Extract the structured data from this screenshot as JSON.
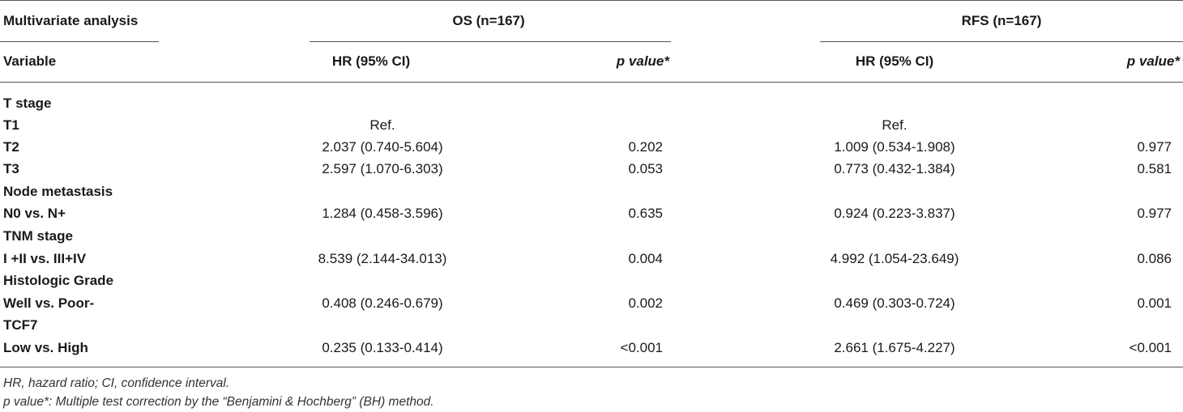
{
  "header": {
    "group_label": "Multivariate analysis",
    "os_label": "OS (n=167)",
    "rfs_label": "RFS (n=167)",
    "variable_label": "Variable",
    "os_hr_label": "HR (95% CI)",
    "os_p_label": "p value*",
    "rfs_hr_label": "HR (95% CI)",
    "rfs_p_label": "p value*"
  },
  "rows": [
    {
      "variable": "T stage",
      "os_hr": "",
      "os_p": "",
      "rfs_hr": "",
      "rfs_p": ""
    },
    {
      "variable": "T1",
      "os_hr": "Ref.",
      "os_p": "",
      "rfs_hr": "Ref.",
      "rfs_p": ""
    },
    {
      "variable": "T2",
      "os_hr": "2.037 (0.740-5.604)",
      "os_p": "0.202",
      "rfs_hr": "1.009 (0.534-1.908)",
      "rfs_p": "0.977"
    },
    {
      "variable": "T3",
      "os_hr": "2.597 (1.070-6.303)",
      "os_p": "0.053",
      "rfs_hr": "0.773 (0.432-1.384)",
      "rfs_p": "0.581"
    },
    {
      "variable": "Node metastasis",
      "os_hr": "",
      "os_p": "",
      "rfs_hr": "",
      "rfs_p": ""
    },
    {
      "variable": "N0 vs. N+",
      "os_hr": "1.284 (0.458-3.596)",
      "os_p": "0.635",
      "rfs_hr": "0.924 (0.223-3.837)",
      "rfs_p": "0.977"
    },
    {
      "variable": "TNM stage",
      "os_hr": "",
      "os_p": "",
      "rfs_hr": "",
      "rfs_p": ""
    },
    {
      "variable": "I +II vs. III+IV",
      "os_hr": "8.539 (2.144-34.013)",
      "os_p": "0.004",
      "rfs_hr": "4.992 (1.054-23.649)",
      "rfs_p": "0.086"
    },
    {
      "variable": "Histologic Grade",
      "os_hr": "",
      "os_p": "",
      "rfs_hr": "",
      "rfs_p": ""
    },
    {
      "variable": "Well vs. Poor-",
      "os_hr": "0.408 (0.246-0.679)",
      "os_p": "0.002",
      "rfs_hr": "0.469 (0.303-0.724)",
      "rfs_p": "0.001"
    },
    {
      "variable": "TCF7",
      "os_hr": "",
      "os_p": "",
      "rfs_hr": "",
      "rfs_p": ""
    },
    {
      "variable": "Low vs. High",
      "os_hr": "0.235 (0.133-0.414)",
      "os_p": "<0.001",
      "rfs_hr": "2.661 (1.675-4.227)",
      "rfs_p": "<0.001"
    }
  ],
  "footnotes": [
    "HR, hazard ratio; CI, confidence interval.",
    "p value*: Multiple test correction by the “Benjamini & Hochberg” (BH) method."
  ]
}
